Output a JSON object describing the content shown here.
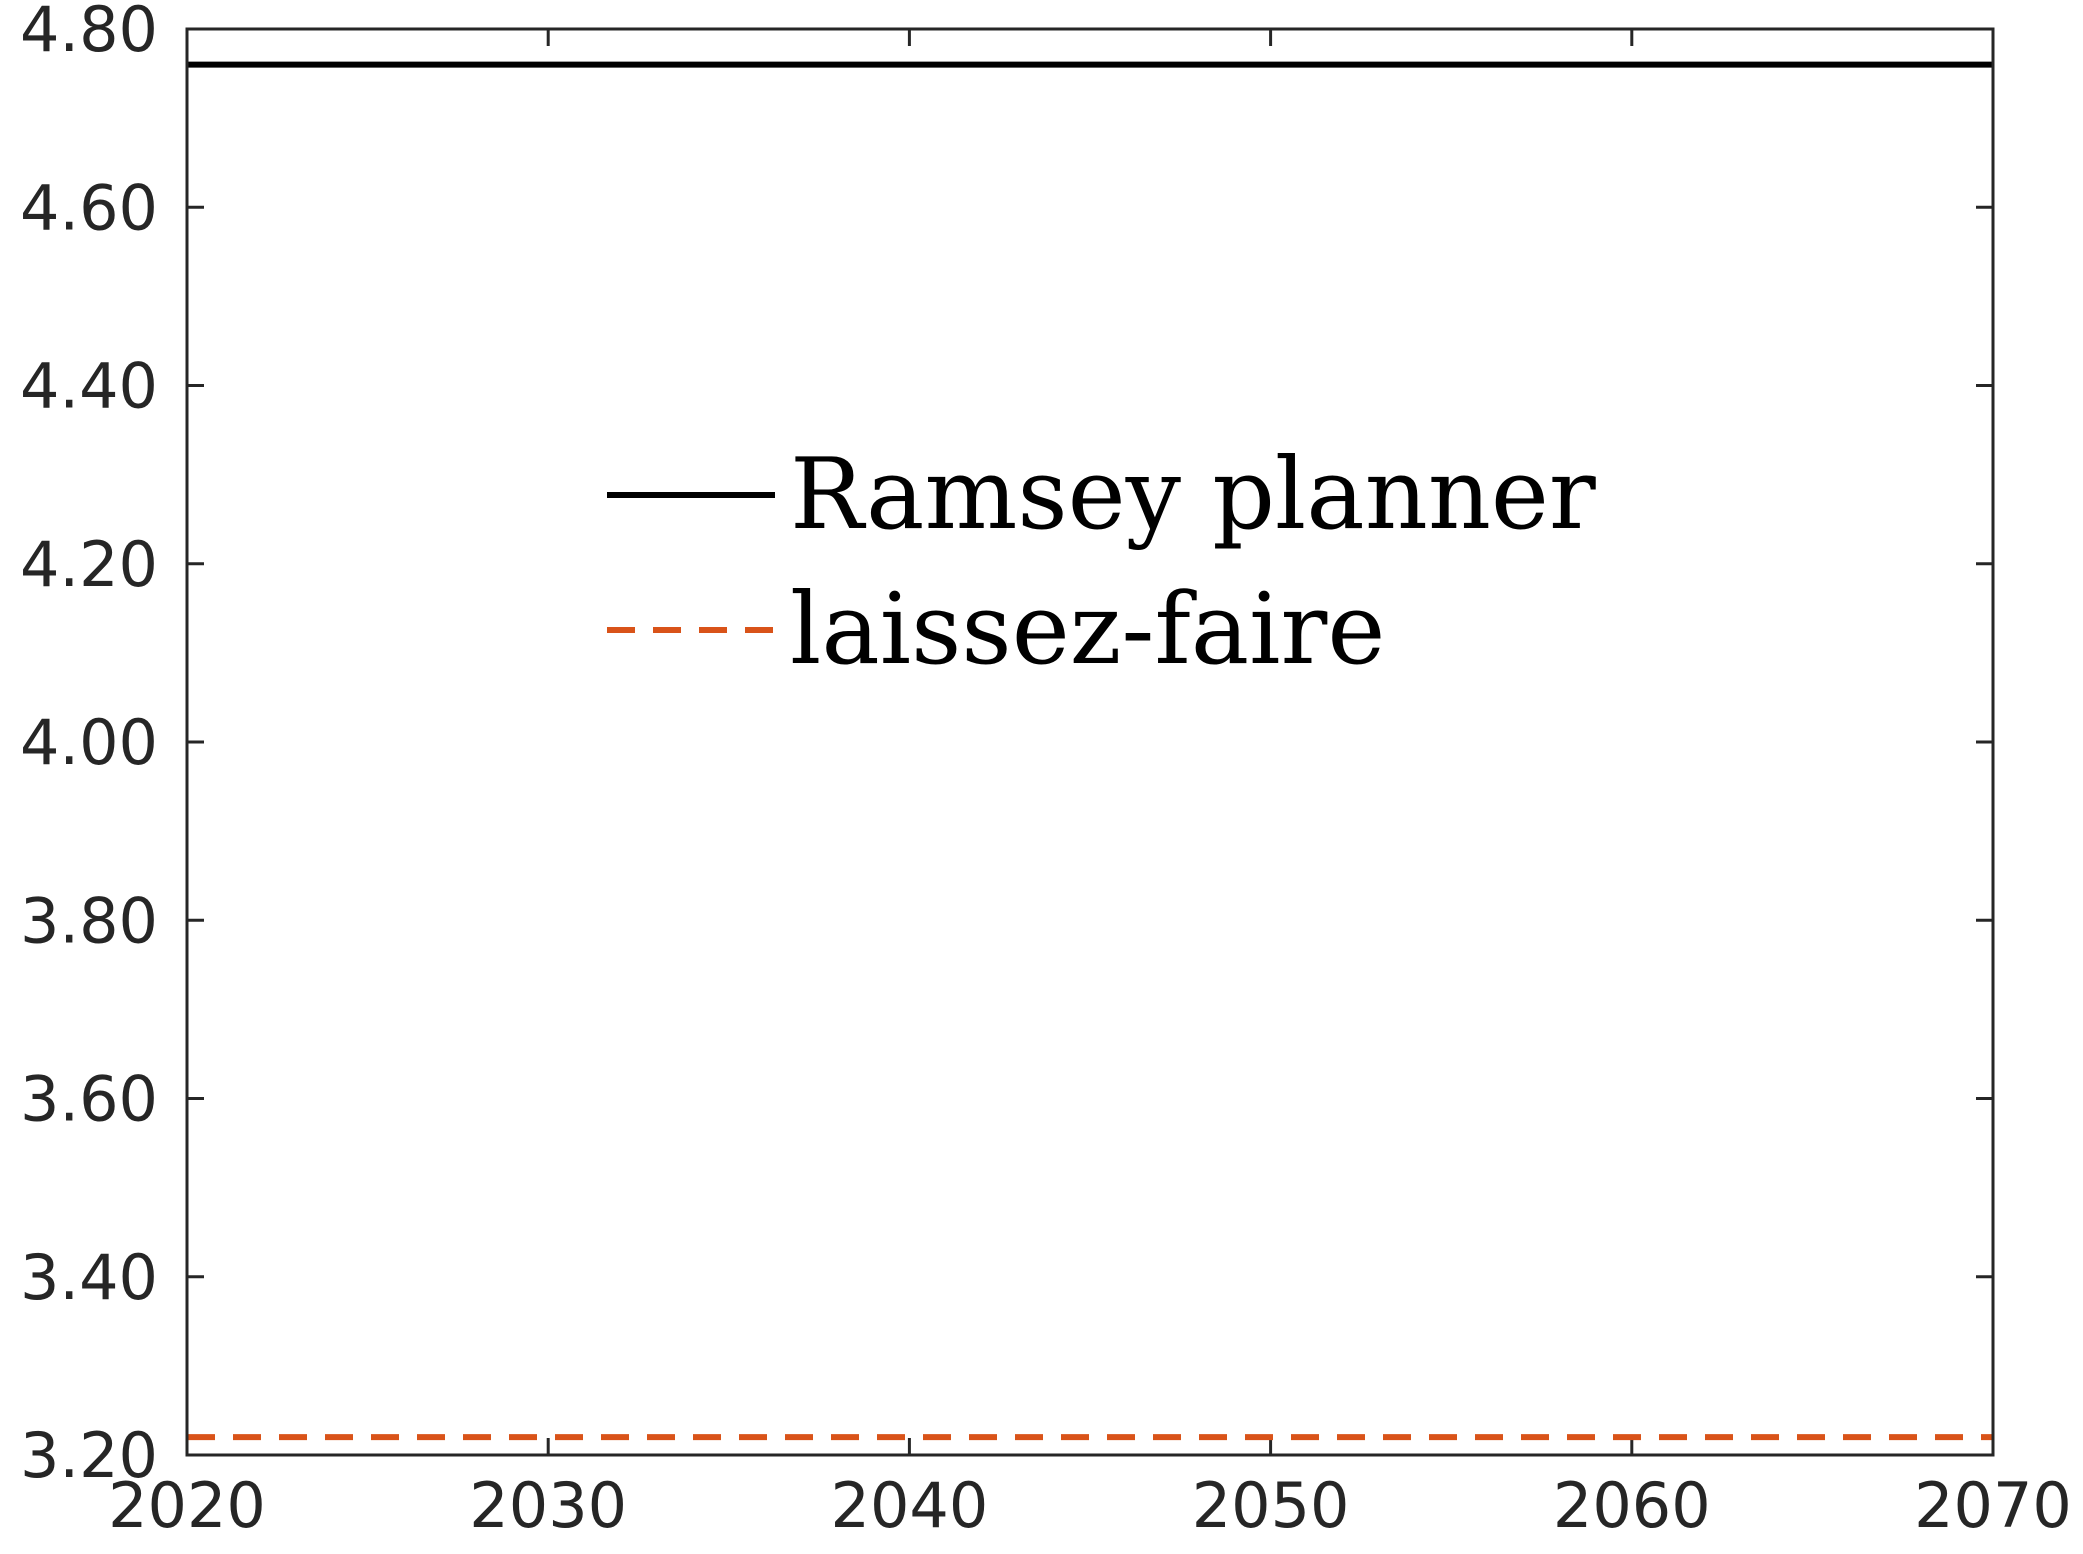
{
  "chart_data": {
    "type": "line",
    "title": "",
    "xlabel": "",
    "ylabel": "",
    "xlim": [
      2020,
      2070
    ],
    "ylim": [
      3.2,
      4.8
    ],
    "xticks": [
      "2020",
      "2030",
      "2040",
      "2050",
      "2060",
      "2070"
    ],
    "yticks": [
      "3.20",
      "3.40",
      "3.60",
      "3.80",
      "4.00",
      "4.20",
      "4.40",
      "4.60",
      "4.80"
    ],
    "grid": false,
    "legend_position": "upper-center",
    "series": [
      {
        "name": "Ramsey planner",
        "color": "#000000",
        "style": "solid",
        "x": [
          2020,
          2070
        ],
        "y": [
          4.76,
          4.76
        ]
      },
      {
        "name": "laissez-faire",
        "color": "#d95319",
        "style": "dashed",
        "x": [
          2020,
          2070
        ],
        "y": [
          3.22,
          3.22
        ]
      }
    ]
  }
}
